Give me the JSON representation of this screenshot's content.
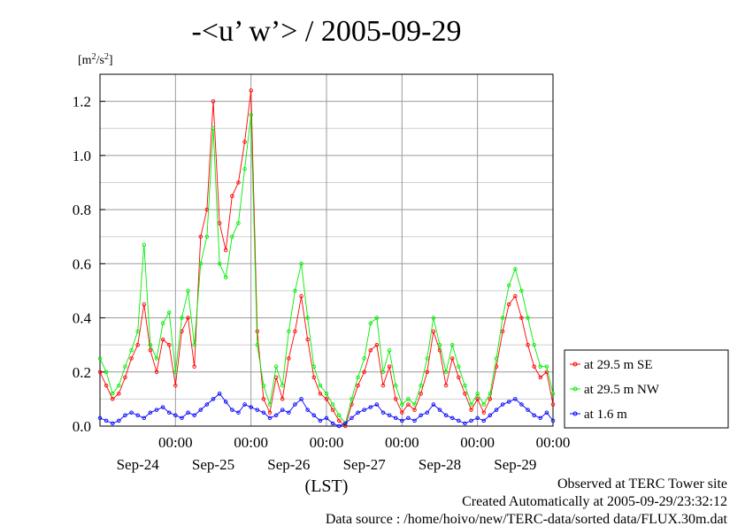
{
  "chart_data": {
    "type": "line",
    "title": "-<u’ w’> / 2005-09-29",
    "y_unit_base": "[m",
    "y_unit_sup1": "2",
    "y_unit_mid": "/s",
    "y_unit_sup2": "2",
    "y_unit_end": "]",
    "xlabel": "(LST)",
    "ylim": [
      0,
      1.3
    ],
    "y_ticks": [
      "0.0",
      "0.2",
      "0.4",
      "0.6",
      "0.8",
      "1.0",
      "1.2"
    ],
    "x_time_labels": [
      "00:00",
      "00:00",
      "00:00",
      "00:00",
      "00:00",
      "00:00"
    ],
    "x_date_labels": [
      "Sep-24",
      "Sep-25",
      "Sep-26",
      "Sep-27",
      "Sep-28",
      "Sep-29"
    ],
    "x_range_hours": [
      0,
      144
    ],
    "grid": true,
    "legend_placement": "right",
    "series": [
      {
        "name": "at 29.5 m SE",
        "color": "#ff0000",
        "x": [
          0,
          2,
          4,
          6,
          8,
          10,
          12,
          14,
          16,
          18,
          20,
          22,
          24,
          26,
          28,
          30,
          32,
          34,
          36,
          38,
          40,
          42,
          44,
          46,
          48,
          50,
          52,
          54,
          56,
          58,
          60,
          62,
          64,
          66,
          68,
          70,
          72,
          74,
          76,
          78,
          80,
          82,
          84,
          86,
          88,
          90,
          92,
          94,
          96,
          98,
          100,
          102,
          104,
          106,
          108,
          110,
          112,
          114,
          116,
          118,
          120,
          122,
          124,
          126,
          128,
          130,
          132,
          134,
          136,
          138,
          140,
          142,
          144
        ],
        "values": [
          0.2,
          0.15,
          0.1,
          0.12,
          0.18,
          0.25,
          0.3,
          0.45,
          0.28,
          0.2,
          0.32,
          0.3,
          0.15,
          0.35,
          0.4,
          0.22,
          0.7,
          0.8,
          1.2,
          0.75,
          0.65,
          0.85,
          0.9,
          1.05,
          1.24,
          0.35,
          0.1,
          0.05,
          0.18,
          0.1,
          0.25,
          0.35,
          0.48,
          0.32,
          0.18,
          0.12,
          0.1,
          0.06,
          0.02,
          0.0,
          0.08,
          0.15,
          0.2,
          0.28,
          0.3,
          0.15,
          0.22,
          0.1,
          0.05,
          0.08,
          0.06,
          0.12,
          0.2,
          0.35,
          0.28,
          0.15,
          0.25,
          0.18,
          0.12,
          0.06,
          0.1,
          0.05,
          0.1,
          0.22,
          0.35,
          0.45,
          0.48,
          0.4,
          0.3,
          0.22,
          0.18,
          0.2,
          0.08
        ]
      },
      {
        "name": "at 29.5 m NW",
        "color": "#00ee00",
        "x": [
          0,
          2,
          4,
          6,
          8,
          10,
          12,
          14,
          16,
          18,
          20,
          22,
          24,
          26,
          28,
          30,
          32,
          34,
          36,
          38,
          40,
          42,
          44,
          46,
          48,
          50,
          52,
          54,
          56,
          58,
          60,
          62,
          64,
          66,
          68,
          70,
          72,
          74,
          76,
          78,
          80,
          82,
          84,
          86,
          88,
          90,
          92,
          94,
          96,
          98,
          100,
          102,
          104,
          106,
          108,
          110,
          112,
          114,
          116,
          118,
          120,
          122,
          124,
          126,
          128,
          130,
          132,
          134,
          136,
          138,
          140,
          142,
          144
        ],
        "values": [
          0.25,
          0.2,
          0.12,
          0.15,
          0.22,
          0.28,
          0.35,
          0.67,
          0.3,
          0.25,
          0.38,
          0.42,
          0.2,
          0.4,
          0.5,
          0.3,
          0.6,
          0.7,
          1.1,
          0.6,
          0.55,
          0.7,
          0.75,
          0.95,
          1.15,
          0.3,
          0.15,
          0.08,
          0.22,
          0.15,
          0.35,
          0.5,
          0.6,
          0.4,
          0.22,
          0.15,
          0.12,
          0.08,
          0.04,
          0.01,
          0.1,
          0.18,
          0.25,
          0.38,
          0.4,
          0.2,
          0.28,
          0.15,
          0.08,
          0.1,
          0.08,
          0.15,
          0.25,
          0.4,
          0.3,
          0.2,
          0.3,
          0.22,
          0.15,
          0.08,
          0.12,
          0.08,
          0.12,
          0.25,
          0.4,
          0.52,
          0.58,
          0.5,
          0.4,
          0.3,
          0.22,
          0.22,
          0.12
        ]
      },
      {
        "name": "at 1.6 m",
        "color": "#0000ff",
        "x": [
          0,
          2,
          4,
          6,
          8,
          10,
          12,
          14,
          16,
          18,
          20,
          22,
          24,
          26,
          28,
          30,
          32,
          34,
          36,
          38,
          40,
          42,
          44,
          46,
          48,
          50,
          52,
          54,
          56,
          58,
          60,
          62,
          64,
          66,
          68,
          70,
          72,
          74,
          76,
          78,
          80,
          82,
          84,
          86,
          88,
          90,
          92,
          94,
          96,
          98,
          100,
          102,
          104,
          106,
          108,
          110,
          112,
          114,
          116,
          118,
          120,
          122,
          124,
          126,
          128,
          130,
          132,
          134,
          136,
          138,
          140,
          142,
          144
        ],
        "values": [
          0.03,
          0.02,
          0.01,
          0.02,
          0.04,
          0.05,
          0.04,
          0.03,
          0.05,
          0.06,
          0.07,
          0.05,
          0.04,
          0.03,
          0.05,
          0.04,
          0.06,
          0.08,
          0.1,
          0.12,
          0.09,
          0.06,
          0.05,
          0.08,
          0.07,
          0.06,
          0.05,
          0.03,
          0.04,
          0.06,
          0.05,
          0.08,
          0.1,
          0.06,
          0.04,
          0.02,
          0.03,
          0.01,
          0.0,
          0.01,
          0.03,
          0.05,
          0.06,
          0.07,
          0.08,
          0.05,
          0.04,
          0.03,
          0.02,
          0.03,
          0.02,
          0.04,
          0.05,
          0.08,
          0.06,
          0.04,
          0.03,
          0.02,
          0.01,
          0.02,
          0.03,
          0.02,
          0.04,
          0.06,
          0.08,
          0.09,
          0.1,
          0.08,
          0.06,
          0.04,
          0.03,
          0.05,
          0.02
        ]
      }
    ],
    "footer_line1": "Observed at TERC Tower site",
    "footer_line2": "Created Automatically at 2005-09-29/23:32:12",
    "footer_line3": "Data source : /home/hoivo/new/TERC-data/sorted  data/FLUX.30m.dat"
  }
}
